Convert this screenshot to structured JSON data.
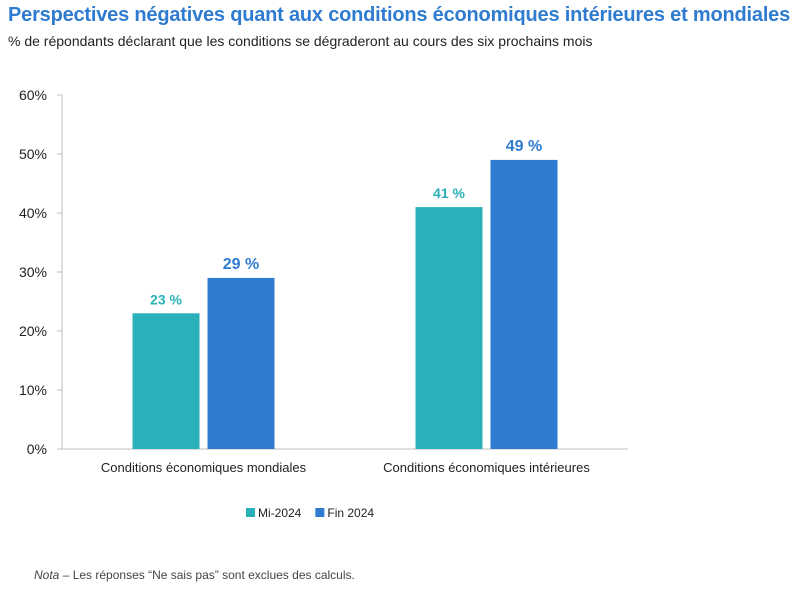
{
  "title": "Perspectives négatives quant aux conditions économiques intérieures et mondiales",
  "subtitle": "% de répondants déclarant que les conditions se dégraderont au cours des six prochains mois",
  "note": {
    "label": "Nota",
    "text": " – Les réponses “Ne sais pas” sont exclues des calculs."
  },
  "chart_data": {
    "type": "bar",
    "categories": [
      "Conditions économiques mondiales",
      "Conditions économiques intérieures"
    ],
    "series": [
      {
        "name": "Mi-2024",
        "color": "#2ab0b8",
        "values": [
          23,
          41
        ],
        "labels": [
          "23 %",
          "41 %"
        ]
      },
      {
        "name": "Fin 2024",
        "color": "#2f7bd0",
        "values": [
          29,
          49
        ],
        "labels": [
          "29 %",
          "49 %"
        ]
      }
    ],
    "ylim": [
      0,
      60
    ],
    "yticks": [
      0,
      10,
      20,
      30,
      40,
      50,
      60
    ],
    "ytick_labels": [
      "0%",
      "10%",
      "20%",
      "30%",
      "40%",
      "50%",
      "60%"
    ],
    "legend": "bottom-center",
    "grid": false
  }
}
